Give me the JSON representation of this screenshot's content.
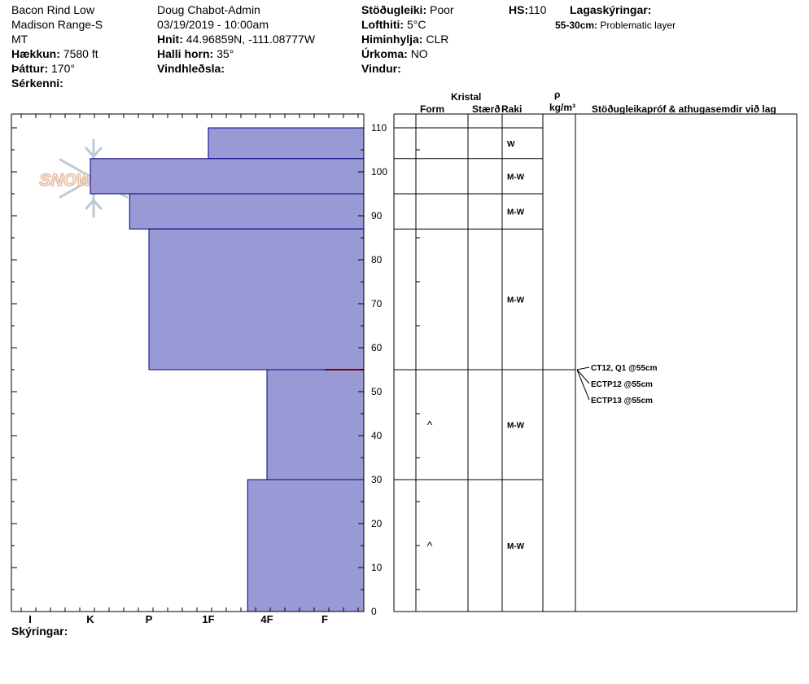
{
  "header": {
    "location": "Bacon Rind Low",
    "range": "Madison Range-S",
    "state": "MT",
    "elevation_label": "Hækkun:",
    "elevation_value": "7580 ft",
    "aspect_label": "Þáttur:",
    "aspect_value": "170°",
    "features_label": "Sérkenni:",
    "observer": "Doug Chabot-Admin",
    "datetime": "03/19/2019 - 10:00am",
    "coords_label": "Hnit:",
    "coords_value": "44.96859N, -111.08777W",
    "slope_label": "Halli horn:",
    "slope_value": "35°",
    "wind_loading_label": "Vindhleðsla:",
    "stability_label": "Stöðugleiki:",
    "stability_value": "Poor",
    "air_temp_label": "Lofthiti:",
    "air_temp_value": "5°C",
    "sky_label": "Himinhylja:",
    "sky_value": "CLR",
    "precip_label": "Úrkoma:",
    "precip_value": "NO",
    "wind_label": "Vindur:",
    "hs_label": "HS:",
    "hs_value": "110",
    "layer_notes_title": "Lagaskýringar:",
    "layer_note_range": "55-30cm:",
    "layer_note_text": "Problematic layer"
  },
  "columns": {
    "kristal": "Kristal",
    "form": "Form",
    "size": "Stærð",
    "moisture": "Raki",
    "rho": "ρ",
    "density_unit": "kg/m³",
    "tests": "Stöðugleikapróf & athugasemdir við lag"
  },
  "footer": {
    "legend_label": "Skýringar:"
  },
  "logo": {
    "text": "SNOW PILOT"
  },
  "colors": {
    "hardness_fill": "#9999d6",
    "hardness_stroke": "#000080",
    "weak_layer": "#800000"
  },
  "chart_data": {
    "type": "bar",
    "orientation": "horizontal-profile",
    "hardness_ticks": [
      "I",
      "K",
      "P",
      "1F",
      "4F",
      "F"
    ],
    "depth_range": [
      0,
      110
    ],
    "depth_ticks": [
      0,
      10,
      20,
      30,
      40,
      50,
      60,
      70,
      80,
      90,
      100,
      110
    ],
    "layers": [
      {
        "top": 110,
        "bottom": 103,
        "hardness_index": 4,
        "moisture": "W",
        "form": ""
      },
      {
        "top": 103,
        "bottom": 95,
        "hardness_index": 2,
        "moisture": "M-W",
        "form": ""
      },
      {
        "top": 95,
        "bottom": 87,
        "hardness_index": 2.67,
        "moisture": "M-W",
        "form": ""
      },
      {
        "top": 87,
        "bottom": 55,
        "hardness_index": 3,
        "moisture": "M-W",
        "form": ""
      },
      {
        "top": 55,
        "bottom": 30,
        "hardness_index": 5,
        "moisture": "M-W",
        "form": "^"
      },
      {
        "top": 30,
        "bottom": 0,
        "hardness_index": 4.67,
        "moisture": "M-W",
        "form": "^"
      }
    ],
    "weak_layer_depth": 55,
    "tests": [
      "CT12, Q1 @55cm",
      "ECTP12 @55cm",
      "ECTP13 @55cm"
    ]
  }
}
